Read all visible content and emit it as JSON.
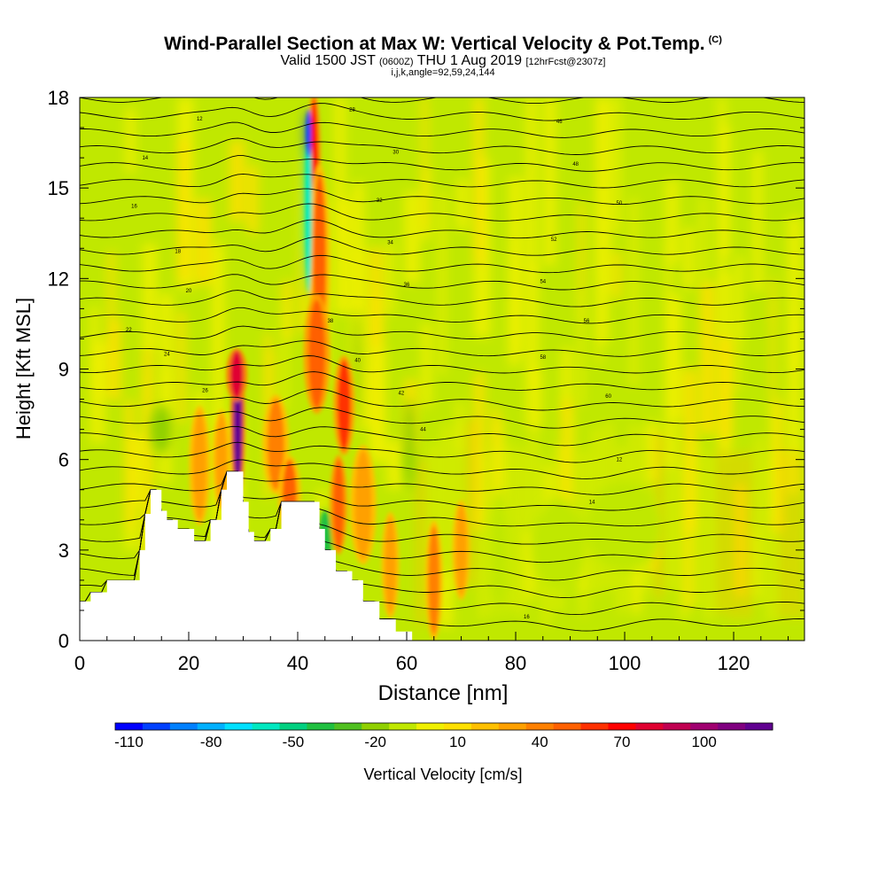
{
  "chart_data": {
    "type": "heatmap",
    "title": "Wind-Parallel Section at Max W: Vertical Velocity & Pot.Temp.",
    "title_mark": "(C)",
    "subtitle_main": "Valid 1500 JST",
    "subtitle_z": "(0600Z)",
    "subtitle_date": "THU 1 Aug 2019",
    "subtitle_fcst": "[12hrFcst@2307z]",
    "subtitle2": "i,j,k,angle=92,59,24,144",
    "xlabel": "Distance [nm]",
    "ylabel": "Height [Kft MSL]",
    "xlim": [
      0,
      133
    ],
    "ylim": [
      0,
      18
    ],
    "xticks": [
      "0",
      "20",
      "40",
      "60",
      "80",
      "100",
      "120"
    ],
    "yticks": [
      "0",
      "3",
      "6",
      "9",
      "12",
      "15",
      "18"
    ],
    "colorbar": {
      "label": "Vertical Velocity [cm/s]",
      "tick_labels": [
        "-110",
        "-80",
        "-50",
        "-20",
        "10",
        "40",
        "70",
        "100"
      ],
      "colors": [
        "#0000ff",
        "#0040ff",
        "#0080ff",
        "#00b0ff",
        "#00e0ff",
        "#00e8c0",
        "#00d080",
        "#20c040",
        "#50c020",
        "#90d000",
        "#c0e800",
        "#f0f000",
        "#ffe000",
        "#ffc000",
        "#ffa000",
        "#ff8000",
        "#ff6000",
        "#ff3000",
        "#ff0000",
        "#e00030",
        "#c00050",
        "#a00070",
        "#800080",
        "#600090"
      ]
    },
    "terrain_kft": [
      [
        0,
        1.3
      ],
      [
        2,
        1.3
      ],
      [
        2,
        1.6
      ],
      [
        5,
        1.6
      ],
      [
        5,
        2.0
      ],
      [
        11,
        2.0
      ],
      [
        11,
        3.0
      ],
      [
        12,
        3.0
      ],
      [
        12,
        4.2
      ],
      [
        13,
        4.2
      ],
      [
        13,
        5.0
      ],
      [
        15,
        5.0
      ],
      [
        15,
        4.3
      ],
      [
        16,
        4.3
      ],
      [
        16,
        4.0
      ],
      [
        18,
        4.0
      ],
      [
        18,
        3.7
      ],
      [
        21,
        3.7
      ],
      [
        21,
        3.3
      ],
      [
        24,
        3.3
      ],
      [
        24,
        4.0
      ],
      [
        26,
        4.0
      ],
      [
        26,
        5.0
      ],
      [
        27,
        5.0
      ],
      [
        27,
        5.6
      ],
      [
        30,
        5.6
      ],
      [
        30,
        4.6
      ],
      [
        31,
        4.6
      ],
      [
        31,
        3.6
      ],
      [
        32,
        3.6
      ],
      [
        32,
        3.3
      ],
      [
        35,
        3.3
      ],
      [
        35,
        3.7
      ],
      [
        37,
        3.7
      ],
      [
        37,
        4.6
      ],
      [
        44,
        4.6
      ],
      [
        44,
        3.7
      ],
      [
        45,
        3.7
      ],
      [
        45,
        3.0
      ],
      [
        47,
        3.0
      ],
      [
        47,
        2.3
      ],
      [
        50,
        2.3
      ],
      [
        50,
        2.0
      ],
      [
        52,
        2.0
      ],
      [
        52,
        1.3
      ],
      [
        55,
        1.3
      ],
      [
        55,
        0.7
      ],
      [
        58,
        0.7
      ],
      [
        58,
        0.3
      ],
      [
        61,
        0.3
      ],
      [
        61,
        0.0
      ]
    ],
    "updrafts": [
      {
        "x": 29,
        "y": 7.2,
        "w": 0.8,
        "h": 2.2,
        "v": 110
      },
      {
        "x": 28.8,
        "y": 8.8,
        "w": 1.2,
        "h": 0.8,
        "v": 75
      },
      {
        "x": 43,
        "y": 15.5,
        "w": 0.8,
        "h": 2.5,
        "v": 65
      },
      {
        "x": 44,
        "y": 12.5,
        "w": 1.2,
        "h": 3.0,
        "v": 40
      },
      {
        "x": 43.5,
        "y": 9.5,
        "w": 1.5,
        "h": 1.8,
        "v": 45
      },
      {
        "x": 48.5,
        "y": 7.8,
        "w": 1.2,
        "h": 1.5,
        "v": 50
      },
      {
        "x": 47.5,
        "y": 4.5,
        "w": 1.0,
        "h": 1.5,
        "v": 45
      },
      {
        "x": 36,
        "y": 6.5,
        "w": 1.5,
        "h": 1.5,
        "v": 30
      },
      {
        "x": 38.5,
        "y": 4.8,
        "w": 1.3,
        "h": 1.2,
        "v": 40
      },
      {
        "x": 26,
        "y": 6.0,
        "w": 1.0,
        "h": 1.5,
        "v": 25
      },
      {
        "x": 65,
        "y": 2.0,
        "w": 1.0,
        "h": 1.8,
        "v": 30
      },
      {
        "x": 70,
        "y": 3.0,
        "w": 1.0,
        "h": 1.5,
        "v": 25
      },
      {
        "x": 22,
        "y": 5.8,
        "w": 1.2,
        "h": 1.8,
        "v": 22
      },
      {
        "x": 52,
        "y": 4.5,
        "w": 1.5,
        "h": 1.8,
        "v": 25
      },
      {
        "x": 57,
        "y": 2.5,
        "w": 1.0,
        "h": 1.6,
        "v": 28
      }
    ],
    "downdrafts": [
      {
        "x": 42,
        "y": 14.5,
        "w": 0.6,
        "h": 3.0,
        "v": -70
      },
      {
        "x": 42,
        "y": 16.8,
        "w": 0.5,
        "h": 0.8,
        "v": -105
      },
      {
        "x": 45,
        "y": 3.3,
        "w": 1.0,
        "h": 1.0,
        "v": -45
      },
      {
        "x": 60.5,
        "y": 6.5,
        "w": 1.0,
        "h": 1.5,
        "v": -30
      },
      {
        "x": 15,
        "y": 7.0,
        "w": 2.0,
        "h": 0.8,
        "v": -25
      },
      {
        "x": 51,
        "y": 9.0,
        "w": 0.6,
        "h": 2.0,
        "v": -28
      },
      {
        "x": 88,
        "y": 3.2,
        "w": 5.0,
        "h": 1.5,
        "v": -18
      },
      {
        "x": 100,
        "y": 3.8,
        "w": 7.0,
        "h": 1.5,
        "v": -20
      },
      {
        "x": 77,
        "y": 3.0,
        "w": 2.0,
        "h": 2.0,
        "v": -15
      }
    ],
    "contour_labels": [
      "12",
      "14",
      "16",
      "18",
      "20",
      "22",
      "24",
      "26",
      "28",
      "30",
      "32",
      "34",
      "36",
      "38",
      "40",
      "42",
      "44",
      "46",
      "48",
      "50",
      "52",
      "54",
      "56",
      "58",
      "60"
    ]
  }
}
